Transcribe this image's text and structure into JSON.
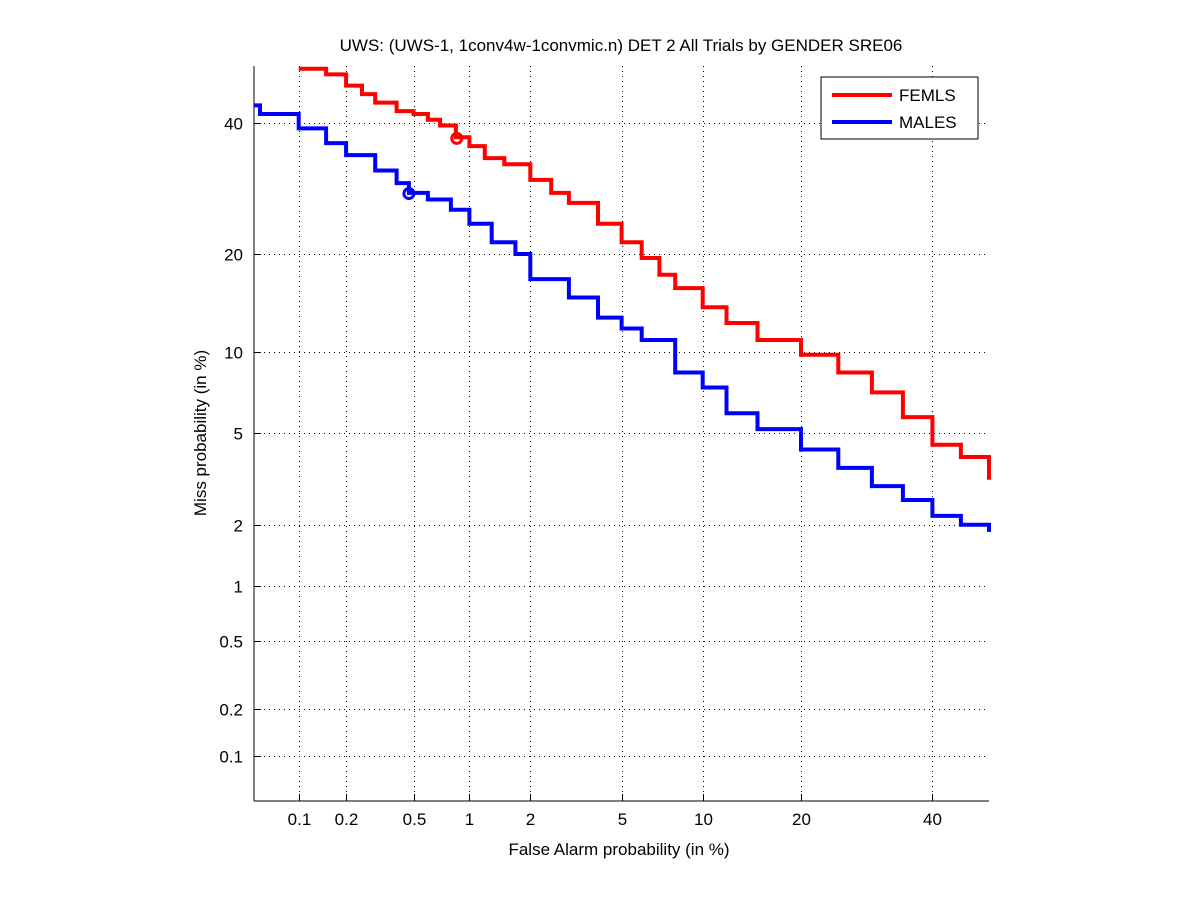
{
  "chart_data": {
    "type": "line",
    "title": "UWS: (UWS-1, 1conv4w-1convmic.n) DET 2 All Trials by GENDER SRE06",
    "xlabel": "False Alarm probability (in %)",
    "ylabel": "Miss probability (in %)",
    "xscale": "probit",
    "yscale": "probit",
    "xlim": [
      0.05,
      50
    ],
    "ylim": [
      0.05,
      50
    ],
    "grid": true,
    "legend_position": "top-right",
    "xticks": [
      0.1,
      0.2,
      0.5,
      1,
      2,
      5,
      10,
      20,
      40
    ],
    "xtick_labels": [
      "0.1",
      "0.2",
      "0.5",
      "1",
      "2",
      "5",
      "10",
      "20",
      "40"
    ],
    "yticks": [
      0.1,
      0.2,
      0.5,
      1,
      2,
      5,
      10,
      20,
      40
    ],
    "ytick_labels": [
      "0.1",
      "0.2",
      "0.5",
      "1",
      "2",
      "5",
      "10",
      "20",
      "40"
    ],
    "series": [
      {
        "name": "FEMLS",
        "color": "#ff0000",
        "x": [
          0.1,
          0.15,
          0.2,
          0.25,
          0.3,
          0.4,
          0.5,
          0.6,
          0.7,
          0.85,
          1,
          1.2,
          1.5,
          2,
          2.5,
          3,
          4,
          5,
          6,
          7,
          8,
          10,
          12,
          15,
          20,
          25,
          30,
          35,
          40,
          45,
          50
        ],
        "y": [
          49.5,
          48.5,
          46.5,
          45,
          43.5,
          42,
          41.5,
          40.5,
          39.5,
          37.5,
          36,
          34,
          33,
          30.5,
          28.5,
          27,
          24,
          21.5,
          19.5,
          17.5,
          16,
          14,
          12.5,
          11,
          9.8,
          8.5,
          7.2,
          5.8,
          4.5,
          4,
          3.2
        ],
        "marker": {
          "x": 0.86,
          "y": 37.3
        }
      },
      {
        "name": "MALES",
        "color": "#0000ff",
        "x": [
          0.05,
          0.055,
          0.09,
          0.1,
          0.15,
          0.2,
          0.3,
          0.4,
          0.47,
          0.6,
          0.8,
          1,
          1.3,
          1.7,
          2,
          3,
          4,
          5,
          6,
          8,
          10,
          12,
          15,
          20,
          25,
          30,
          35,
          40,
          45,
          50
        ],
        "y": [
          43,
          41.5,
          41.5,
          39,
          36.5,
          34.5,
          32,
          30,
          28.5,
          27.5,
          26,
          24,
          21.5,
          20,
          17,
          15,
          13,
          12,
          11,
          8.5,
          7.5,
          6,
          5.2,
          4.3,
          3.6,
          3.0,
          2.6,
          2.2,
          2.0,
          1.85
        ],
        "marker": {
          "x": 0.47,
          "y": 28.4
        }
      }
    ]
  }
}
